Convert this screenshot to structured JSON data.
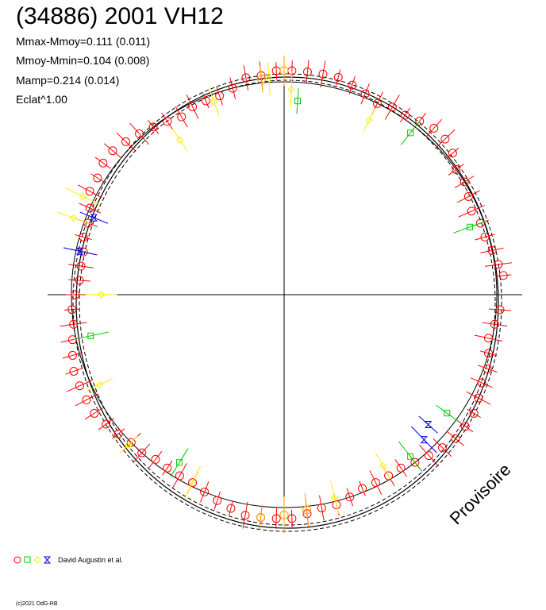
{
  "title": "(34886) 2001 VH12",
  "stats": {
    "mmax_mmoy": "Mmax-Mmoy=0.111 (0.011)",
    "mmoy_mmin": "Mmoy-Mmin=0.104 (0.008)",
    "mamp": "Mamp=0.214 (0.014)",
    "eclat": "Eclat^1.00"
  },
  "legend": {
    "observers": "David Augustin et al."
  },
  "copyright": "(c)2021 OdG-RB",
  "watermark": "Provisoire",
  "colors": {
    "red": "#ff0000",
    "green": "#00cc00",
    "yellow": "#ffee00",
    "blue": "#0000dd",
    "orange": "#ffa000"
  },
  "chart_data": {
    "type": "scatter",
    "projection": "polar lightcurve (phase angle vs magnitude radius)",
    "series": [
      {
        "color": "red",
        "marker": "circle",
        "points": [
          [
            5,
            0.59
          ],
          [
            8,
            0.58
          ],
          [
            12,
            0.57
          ],
          [
            16,
            0.56
          ],
          [
            20,
            0.56
          ],
          [
            24,
            0.55
          ],
          [
            28,
            0.56
          ],
          [
            32,
            0.57
          ],
          [
            36,
            0.57
          ],
          [
            40,
            0.59
          ],
          [
            44,
            0.6
          ],
          [
            48,
            0.6
          ],
          [
            52,
            0.59
          ],
          [
            56,
            0.58
          ],
          [
            60,
            0.58
          ],
          [
            64,
            0.57
          ],
          [
            68,
            0.58
          ],
          [
            72,
            0.59
          ],
          [
            76,
            0.6
          ],
          [
            80,
            0.6
          ],
          [
            84,
            0.6
          ],
          [
            88,
            0.6
          ],
          [
            92,
            0.6
          ],
          [
            96,
            0.59
          ],
          [
            100,
            0.59
          ],
          [
            104,
            0.57
          ],
          [
            108,
            0.56
          ],
          [
            112,
            0.56
          ],
          [
            116,
            0.56
          ],
          [
            120,
            0.55
          ],
          [
            124,
            0.56
          ],
          [
            128,
            0.57
          ],
          [
            132,
            0.58
          ],
          [
            136,
            0.59
          ],
          [
            140,
            0.6
          ],
          [
            144,
            0.6
          ],
          [
            148,
            0.59
          ],
          [
            152,
            0.59
          ],
          [
            156,
            0.57
          ],
          [
            160,
            0.56
          ],
          [
            164,
            0.56
          ],
          [
            168,
            0.55
          ],
          [
            172,
            0.55
          ],
          [
            176,
            0.55
          ],
          [
            180,
            0.56
          ],
          [
            184,
            0.57
          ],
          [
            188,
            0.57
          ],
          [
            192,
            0.58
          ],
          [
            196,
            0.59
          ],
          [
            200,
            0.6
          ],
          [
            204,
            0.6
          ],
          [
            208,
            0.6
          ],
          [
            212,
            0.6
          ],
          [
            216,
            0.59
          ],
          [
            220,
            0.58
          ],
          [
            224,
            0.57
          ],
          [
            228,
            0.57
          ],
          [
            232,
            0.56
          ],
          [
            236,
            0.56
          ],
          [
            240,
            0.56
          ],
          [
            244,
            0.56
          ],
          [
            248,
            0.57
          ],
          [
            252,
            0.58
          ],
          [
            256,
            0.59
          ],
          [
            260,
            0.6
          ],
          [
            264,
            0.6
          ],
          [
            268,
            0.6
          ],
          [
            272,
            0.6
          ],
          [
            276,
            0.59
          ],
          [
            280,
            0.58
          ],
          [
            284,
            0.58
          ],
          [
            288,
            0.57
          ],
          [
            292,
            0.56
          ],
          [
            296,
            0.56
          ],
          [
            300,
            0.56
          ],
          [
            304,
            0.56
          ],
          [
            308,
            0.57
          ],
          [
            312,
            0.58
          ],
          [
            316,
            0.59
          ],
          [
            320,
            0.6
          ],
          [
            324,
            0.6
          ],
          [
            328,
            0.6
          ],
          [
            332,
            0.59
          ],
          [
            336,
            0.58
          ],
          [
            340,
            0.58
          ],
          [
            344,
            0.57
          ],
          [
            348,
            0.56
          ],
          [
            352,
            0.57
          ],
          [
            356,
            0.58
          ]
        ]
      },
      {
        "color": "green",
        "marker": "square",
        "points": [
          [
            86,
            0.52
          ],
          [
            192,
            0.53
          ],
          [
            238,
            0.53
          ],
          [
            52,
            0.55
          ],
          [
            324,
            0.54
          ],
          [
            308,
            0.55
          ],
          [
            20,
            0.53
          ]
        ]
      },
      {
        "color": "yellow",
        "marker": "diamond",
        "points": [
          [
            64,
            0.52
          ],
          [
            88,
            0.55
          ],
          [
            94,
            0.58
          ],
          [
            110,
            0.55
          ],
          [
            124,
            0.5
          ],
          [
            154,
            0.6
          ],
          [
            160,
            0.6
          ],
          [
            180,
            0.49
          ],
          [
            206,
            0.55
          ],
          [
            224,
            0.58
          ],
          [
            244,
            0.56
          ],
          [
            284,
            0.56
          ],
          [
            300,
            0.53
          ]
        ]
      },
      {
        "color": "blue",
        "marker": "hourglass",
        "points": [
          [
            318,
            0.52
          ],
          [
            314,
            0.54
          ],
          [
            168,
            0.56
          ],
          [
            158,
            0.55
          ]
        ]
      },
      {
        "color": "orange",
        "marker": "circle",
        "points": [
          [
            264,
            0.6
          ],
          [
            270,
            0.59
          ],
          [
            276,
            0.58
          ],
          [
            90,
            0.6
          ],
          [
            96,
            0.58
          ]
        ]
      }
    ]
  }
}
